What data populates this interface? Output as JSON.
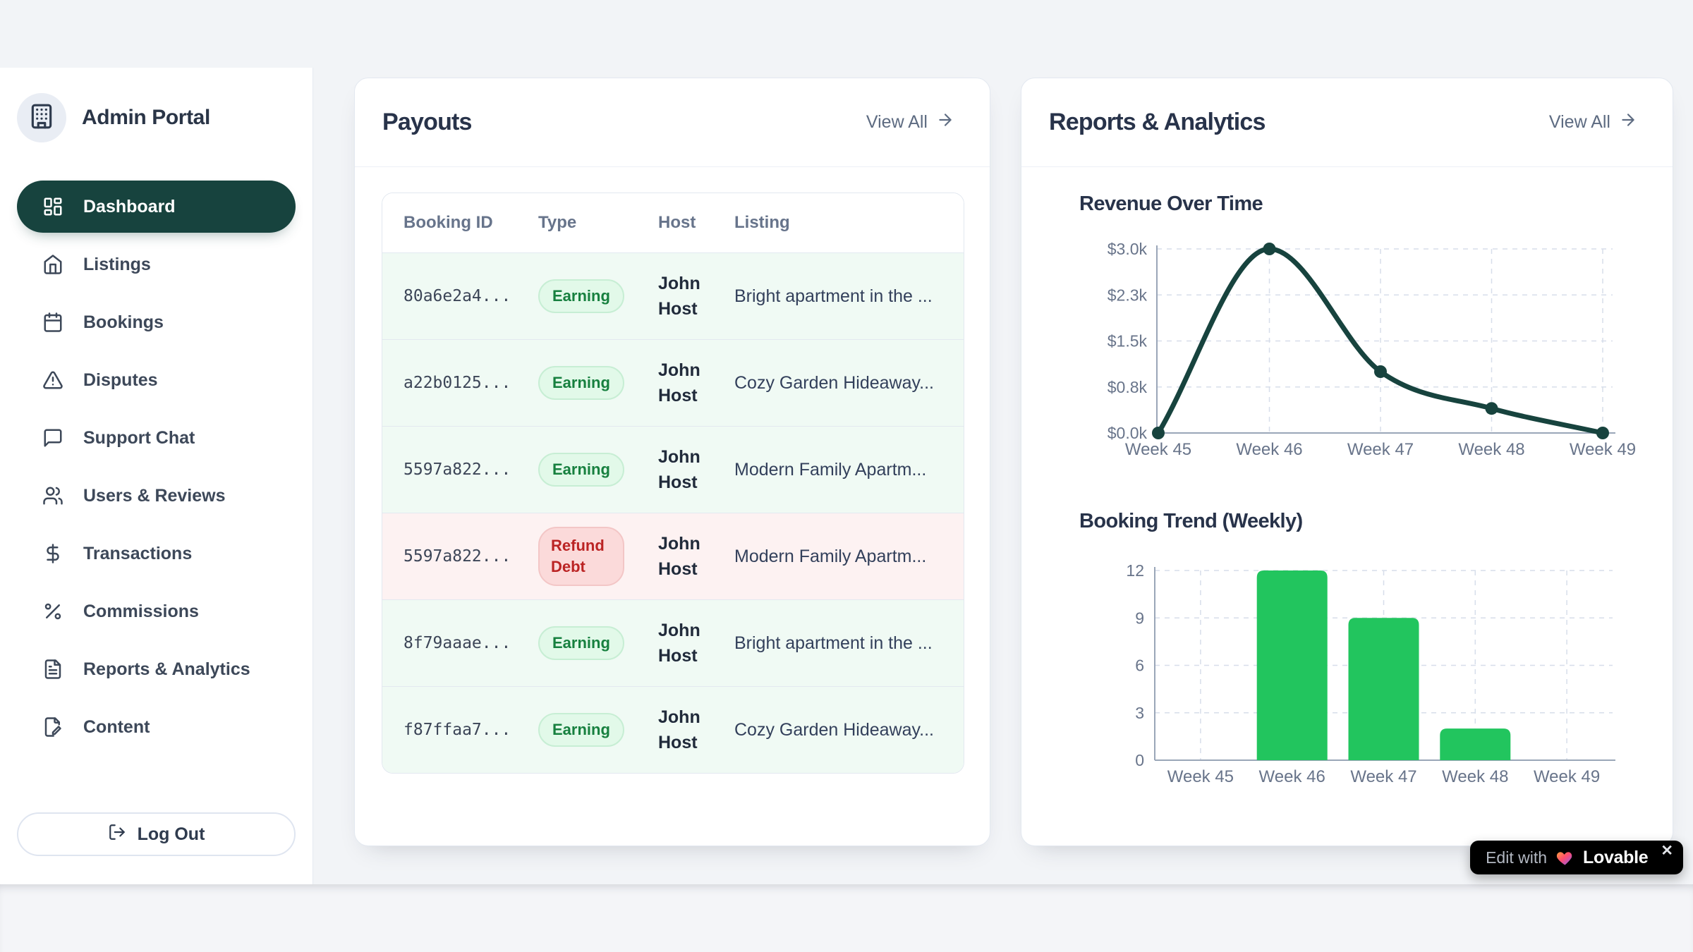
{
  "colors": {
    "page_bg": "#f2f4f7",
    "sidebar_active_bg": "#17433e",
    "accent_teal": "#17433e",
    "bar_green": "#22c55e",
    "earning_text": "#17803f",
    "refund_text": "#bb2424",
    "muted_text": "#67748b",
    "heading_text": "#28334a"
  },
  "sidebar": {
    "title": "Admin Portal",
    "logo_icon": "building-icon",
    "items": [
      {
        "label": "Dashboard",
        "icon": "layout-dashboard-icon",
        "active": true
      },
      {
        "label": "Listings",
        "icon": "home-icon",
        "active": false
      },
      {
        "label": "Bookings",
        "icon": "calendar-icon",
        "active": false
      },
      {
        "label": "Disputes",
        "icon": "alert-triangle-icon",
        "active": false
      },
      {
        "label": "Support Chat",
        "icon": "message-square-icon",
        "active": false
      },
      {
        "label": "Users & Reviews",
        "icon": "users-icon",
        "active": false
      },
      {
        "label": "Transactions",
        "icon": "dollar-sign-icon",
        "active": false
      },
      {
        "label": "Commissions",
        "icon": "percent-icon",
        "active": false
      },
      {
        "label": "Reports & Analytics",
        "icon": "file-text-icon",
        "active": false
      },
      {
        "label": "Content",
        "icon": "file-pen-icon",
        "active": false
      }
    ],
    "logout": {
      "label": "Log Out",
      "icon": "log-out-icon"
    }
  },
  "payouts_card": {
    "title": "Payouts",
    "view_all_label": "View All",
    "table": {
      "columns": [
        "Booking ID",
        "Type",
        "Host",
        "Listing"
      ],
      "rows": [
        {
          "booking_id": "80a6e2a4...",
          "type": "Earning",
          "type_variant": "earning",
          "host": "John Host",
          "listing": "Bright apartment in the ..."
        },
        {
          "booking_id": "a22b0125...",
          "type": "Earning",
          "type_variant": "earning",
          "host": "John Host",
          "listing": "Cozy Garden Hideaway..."
        },
        {
          "booking_id": "5597a822...",
          "type": "Earning",
          "type_variant": "earning",
          "host": "John Host",
          "listing": "Modern Family Apartm..."
        },
        {
          "booking_id": "5597a822...",
          "type": "Refund Debt",
          "type_variant": "refund",
          "host": "John Host",
          "listing": "Modern Family Apartm..."
        },
        {
          "booking_id": "8f79aaae...",
          "type": "Earning",
          "type_variant": "earning",
          "host": "John Host",
          "listing": "Bright apartment in the ..."
        },
        {
          "booking_id": "f87ffaa7...",
          "type": "Earning",
          "type_variant": "earning",
          "host": "John Host",
          "listing": "Cozy Garden Hideaway..."
        }
      ]
    }
  },
  "reports_card": {
    "title": "Reports & Analytics",
    "view_all_label": "View All"
  },
  "chart_data": [
    {
      "type": "line",
      "title": "Revenue Over Time",
      "x": [
        "Week 45",
        "Week 46",
        "Week 47",
        "Week 48",
        "Week 49"
      ],
      "series": [
        {
          "name": "Revenue",
          "values": [
            0,
            3000,
            1000,
            400,
            0
          ]
        }
      ],
      "ylim": [
        0,
        3000
      ],
      "yticks": [
        {
          "value": 0,
          "label": "$0.0k"
        },
        {
          "value": 750,
          "label": "$0.8k"
        },
        {
          "value": 1500,
          "label": "$1.5k"
        },
        {
          "value": 2250,
          "label": "$2.3k"
        },
        {
          "value": 3000,
          "label": "$3.0k"
        }
      ],
      "grid": true,
      "legend": false,
      "line_color": "#17433e"
    },
    {
      "type": "bar",
      "title": "Booking Trend (Weekly)",
      "categories": [
        "Week 45",
        "Week 46",
        "Week 47",
        "Week 48",
        "Week 49"
      ],
      "values": [
        0,
        12,
        9,
        2,
        0
      ],
      "ylim": [
        0,
        12
      ],
      "yticks": [
        {
          "value": 0,
          "label": "0"
        },
        {
          "value": 3,
          "label": "3"
        },
        {
          "value": 6,
          "label": "6"
        },
        {
          "value": 9,
          "label": "9"
        },
        {
          "value": 12,
          "label": "12"
        }
      ],
      "grid": true,
      "bar_color": "#22c55e"
    }
  ],
  "lovable_badge": {
    "prefix": "Edit with",
    "brand": "Lovable",
    "close_label": "✕"
  }
}
